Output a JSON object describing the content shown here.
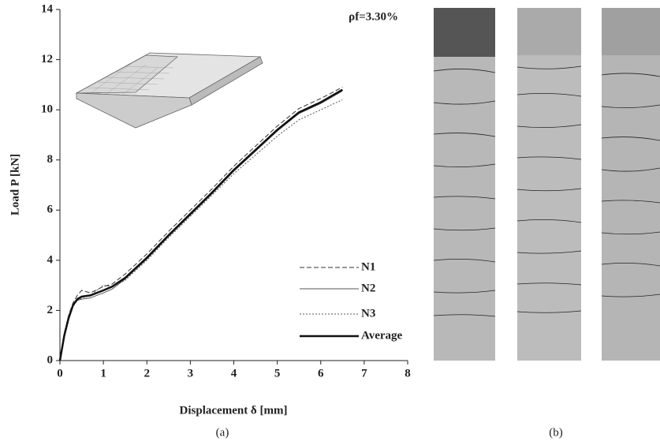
{
  "chart_data": {
    "type": "line",
    "xlabel": "Displacement δ [mm]",
    "ylabel": "Load P [kN]",
    "annotation": "ρf=3.30%",
    "x": [
      0,
      0.1,
      0.2,
      0.3,
      0.4,
      0.5,
      0.7,
      1.0,
      1.2,
      1.5,
      2,
      2.5,
      3,
      3.5,
      4,
      4.5,
      5,
      5.5,
      6,
      6.5
    ],
    "series": [
      {
        "name": "N1",
        "color": "#333333",
        "style": "dashed",
        "width": 1,
        "values": [
          0,
          1.1,
          1.8,
          2.3,
          2.6,
          2.8,
          2.7,
          2.95,
          3.05,
          3.45,
          4.25,
          5.15,
          6.0,
          6.85,
          7.75,
          8.55,
          9.35,
          10.05,
          10.45,
          10.9
        ]
      },
      {
        "name": "N2",
        "color": "#555555",
        "style": "solid",
        "width": 1,
        "values": [
          0,
          1.0,
          1.7,
          2.2,
          2.4,
          2.45,
          2.5,
          2.7,
          2.85,
          3.25,
          4.05,
          4.95,
          5.8,
          6.65,
          7.55,
          8.35,
          9.15,
          9.85,
          10.25,
          10.75
        ]
      },
      {
        "name": "N3",
        "color": "#555555",
        "style": "dotted",
        "width": 1,
        "values": [
          0,
          0.9,
          1.6,
          2.15,
          2.4,
          2.5,
          2.6,
          3.0,
          2.95,
          3.2,
          4.0,
          4.9,
          5.75,
          6.6,
          7.45,
          8.2,
          8.95,
          9.6,
          10.0,
          10.4
        ]
      },
      {
        "name": "Average",
        "color": "#111111",
        "style": "solid",
        "width": 2.5,
        "values": [
          0,
          1.0,
          1.7,
          2.2,
          2.45,
          2.55,
          2.6,
          2.8,
          2.95,
          3.3,
          4.1,
          5.0,
          5.85,
          6.7,
          7.6,
          8.4,
          9.2,
          9.9,
          10.3,
          10.8
        ]
      }
    ],
    "xlim": [
      0,
      8
    ],
    "xticks": [
      0,
      1,
      2,
      3,
      4,
      5,
      6,
      7,
      8
    ],
    "ylim": [
      0,
      14
    ],
    "yticks": [
      0,
      2,
      4,
      6,
      8,
      10,
      12,
      14
    ]
  },
  "captions": [
    "(a)",
    "(b)"
  ]
}
